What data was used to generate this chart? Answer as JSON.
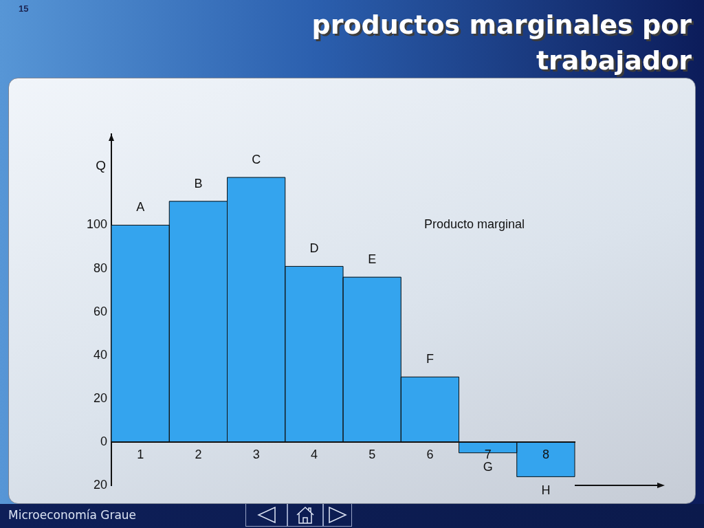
{
  "chart_data": {
    "type": "bar",
    "title": "productos marginales por trabajador",
    "ylabel": "Q",
    "categories": [
      "1",
      "2",
      "3",
      "4",
      "5",
      "6",
      "7",
      "8"
    ],
    "values": [
      100,
      111,
      122,
      81,
      76,
      30,
      -5,
      -16
    ],
    "color": "#34a4ee",
    "ylim": [
      -20,
      142
    ],
    "yticks": [
      {
        "value": -20,
        "label": "20"
      },
      0,
      20,
      40,
      60,
      80,
      100
    ],
    "annotations": [
      {
        "text": "A",
        "x": "1",
        "y": 100
      },
      {
        "text": "B",
        "x": "2",
        "y": 111
      },
      {
        "text": "C",
        "x": "3",
        "y": 122
      },
      {
        "text": "D",
        "x": "4",
        "y": 81
      },
      {
        "text": "E",
        "x": "5",
        "y": 76
      },
      {
        "text": "F",
        "x": "6",
        "y": 30
      },
      {
        "text": "G",
        "x": "7",
        "y": -5
      },
      {
        "text": "H",
        "x": "8",
        "y": -16
      },
      "Producto marginal",
      "Microeconomía Graue",
      "15"
    ]
  }
}
